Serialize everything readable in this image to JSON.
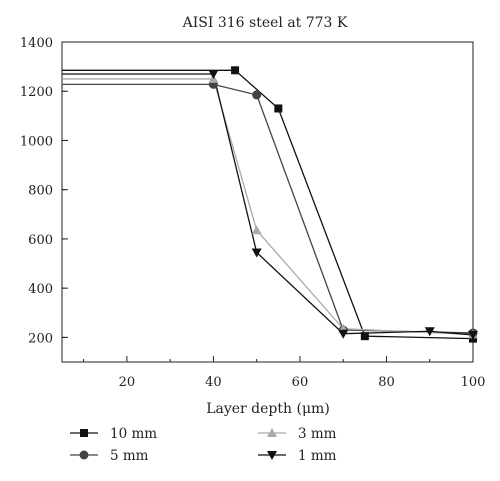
{
  "chart_data": {
    "type": "line",
    "title": "AISI 316 steel at 773 K",
    "xlabel": "Layer depth (μm)",
    "ylabel": "",
    "xlim": [
      5,
      100
    ],
    "ylim": [
      100,
      1400
    ],
    "xticks": [
      20,
      40,
      60,
      80,
      100
    ],
    "yticks": [
      200,
      400,
      600,
      800,
      1000,
      1200,
      1400
    ],
    "grid": false,
    "legend_position": "bottom",
    "series": [
      {
        "name": "10 mm",
        "color": "#111111",
        "marker": "square",
        "x": [
          5,
          45,
          55,
          75,
          100
        ],
        "y": [
          1285,
          1285,
          1130,
          205,
          195
        ]
      },
      {
        "name": "5 mm",
        "color": "#444444",
        "marker": "circle",
        "x": [
          5,
          40,
          50,
          70,
          100
        ],
        "y": [
          1228,
          1228,
          1185,
          230,
          218
        ]
      },
      {
        "name": "3 mm",
        "color": "#aaaaaa",
        "marker": "triangle-up",
        "x": [
          5,
          40,
          50,
          70,
          100
        ],
        "y": [
          1250,
          1250,
          635,
          235,
          212
        ]
      },
      {
        "name": "1 mm",
        "color": "#111111",
        "marker": "triangle-down",
        "x": [
          5,
          40,
          50,
          70,
          90,
          100
        ],
        "y": [
          1270,
          1270,
          545,
          215,
          225,
          210
        ]
      }
    ]
  }
}
